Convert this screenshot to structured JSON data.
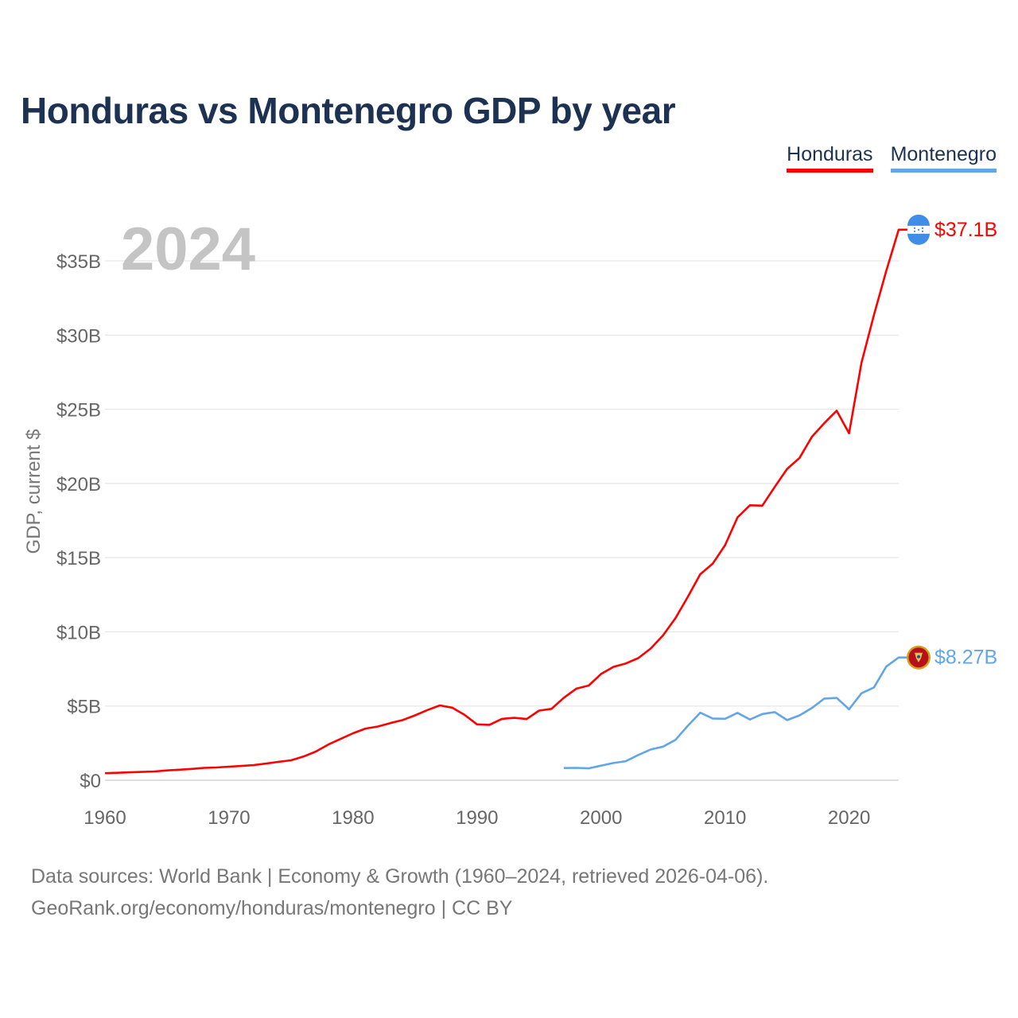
{
  "title": "Honduras vs Montenegro GDP by year",
  "legend": [
    {
      "label": "Honduras",
      "color": "#ff0000"
    },
    {
      "label": "Montenegro",
      "color": "#62a6e8"
    }
  ],
  "year_watermark": "2024",
  "footer": {
    "line1": "Data sources: World Bank | Economy & Growth (1960–2024, retrieved 2026-04-06).",
    "line2": "GeoRank.org/economy/honduras/montenegro | CC BY"
  },
  "chart_data": {
    "type": "line",
    "title": "Honduras vs Montenegro GDP by year",
    "xlabel": "",
    "ylabel": "GDP, current $",
    "xlim": [
      1960,
      2024
    ],
    "ylim": [
      0,
      37.5
    ],
    "x_ticks": [
      1960,
      1970,
      1980,
      1990,
      2000,
      2010,
      2020
    ],
    "x_tick_labels": [
      "1960",
      "1970",
      "1980",
      "1990",
      "2000",
      "2010",
      "2020"
    ],
    "y_ticks": [
      0,
      5,
      10,
      15,
      20,
      25,
      30,
      35
    ],
    "y_tick_labels": [
      "$0",
      "$5B",
      "$10B",
      "$15B",
      "$20B",
      "$25B",
      "$30B",
      "$35B"
    ],
    "grid": true,
    "legend_position": "top-right",
    "series": [
      {
        "name": "Honduras",
        "color": "#ff0000",
        "end_label": "$37.1B",
        "x": [
          1960,
          1961,
          1962,
          1963,
          1964,
          1965,
          1966,
          1967,
          1968,
          1969,
          1970,
          1971,
          1972,
          1973,
          1974,
          1975,
          1976,
          1977,
          1978,
          1979,
          1980,
          1981,
          1982,
          1983,
          1984,
          1985,
          1986,
          1987,
          1988,
          1989,
          1990,
          1991,
          1992,
          1993,
          1994,
          1995,
          1996,
          1997,
          1998,
          1999,
          2000,
          2001,
          2002,
          2003,
          2004,
          2005,
          2006,
          2007,
          2008,
          2009,
          2010,
          2011,
          2012,
          2013,
          2014,
          2015,
          2016,
          2017,
          2018,
          2019,
          2020,
          2021,
          2022,
          2023,
          2024
        ],
        "y": [
          0.47,
          0.5,
          0.53,
          0.56,
          0.59,
          0.66,
          0.71,
          0.76,
          0.83,
          0.86,
          0.91,
          0.96,
          1.02,
          1.12,
          1.24,
          1.34,
          1.59,
          1.93,
          2.4,
          2.78,
          3.16,
          3.48,
          3.62,
          3.85,
          4.05,
          4.37,
          4.73,
          5.04,
          4.89,
          4.4,
          3.76,
          3.73,
          4.13,
          4.2,
          4.12,
          4.69,
          4.81,
          5.56,
          6.17,
          6.38,
          7.16,
          7.64,
          7.87,
          8.23,
          8.87,
          9.76,
          10.92,
          12.36,
          13.88,
          14.59,
          15.84,
          17.71,
          18.53,
          18.5,
          19.76,
          20.98,
          21.72,
          23.14,
          24.06,
          24.9,
          23.38,
          28.13,
          31.34,
          34.33,
          37.1
        ]
      },
      {
        "name": "Montenegro",
        "color": "#62a6e8",
        "end_label": "$8.27B",
        "x": [
          1997,
          1998,
          1999,
          2000,
          2001,
          2002,
          2003,
          2004,
          2005,
          2006,
          2007,
          2008,
          2009,
          2010,
          2011,
          2012,
          2013,
          2014,
          2015,
          2016,
          2017,
          2018,
          2019,
          2020,
          2021,
          2022,
          2023,
          2024
        ],
        "y": [
          0.82,
          0.83,
          0.8,
          0.98,
          1.16,
          1.28,
          1.7,
          2.07,
          2.26,
          2.72,
          3.67,
          4.55,
          4.16,
          4.14,
          4.54,
          4.09,
          4.46,
          4.59,
          4.05,
          4.37,
          4.86,
          5.5,
          5.55,
          4.78,
          5.86,
          6.25,
          7.66,
          8.27
        ]
      }
    ]
  }
}
